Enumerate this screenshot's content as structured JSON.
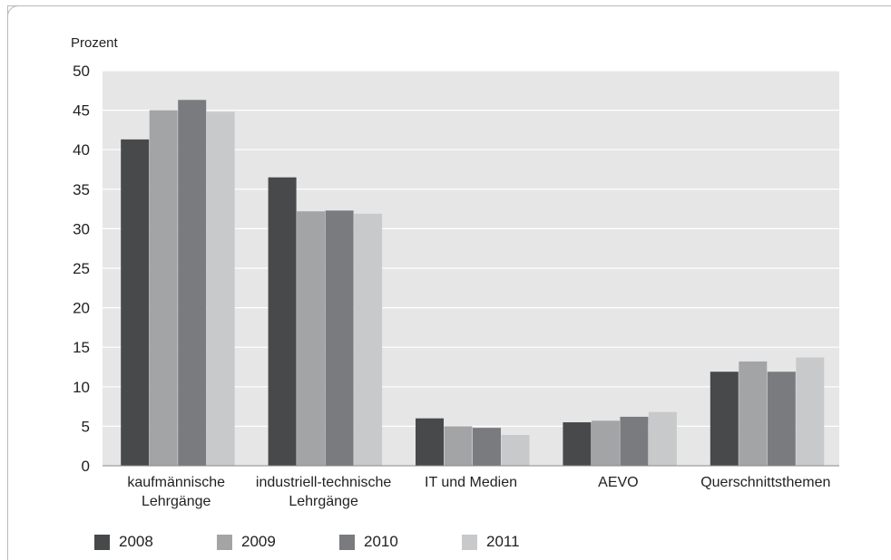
{
  "chart_data": {
    "type": "bar",
    "ylabel": "Prozent",
    "ylim": [
      0,
      50
    ],
    "yticks": [
      0,
      5,
      10,
      15,
      20,
      25,
      30,
      35,
      40,
      45,
      50
    ],
    "categories": [
      [
        "kaufmännische",
        "Lehrgänge"
      ],
      [
        "industriell-technische",
        "Lehrgänge"
      ],
      [
        "IT und Medien"
      ],
      [
        "AEVO"
      ],
      [
        "Querschnittsthemen"
      ]
    ],
    "series": [
      {
        "name": "2008",
        "color": "#48494b",
        "values": [
          41.3,
          36.5,
          6.0,
          5.5,
          11.9
        ]
      },
      {
        "name": "2009",
        "color": "#a3a4a6",
        "values": [
          45.0,
          32.2,
          5.0,
          5.7,
          13.2
        ]
      },
      {
        "name": "2010",
        "color": "#7a7b7e",
        "values": [
          46.3,
          32.3,
          4.8,
          6.2,
          11.9
        ]
      },
      {
        "name": "2011",
        "color": "#c8c9cb",
        "values": [
          44.8,
          31.9,
          3.9,
          6.8,
          13.7
        ]
      }
    ],
    "grid": true,
    "plot_background": "#e6e6e6",
    "legend_position": "bottom-left"
  }
}
